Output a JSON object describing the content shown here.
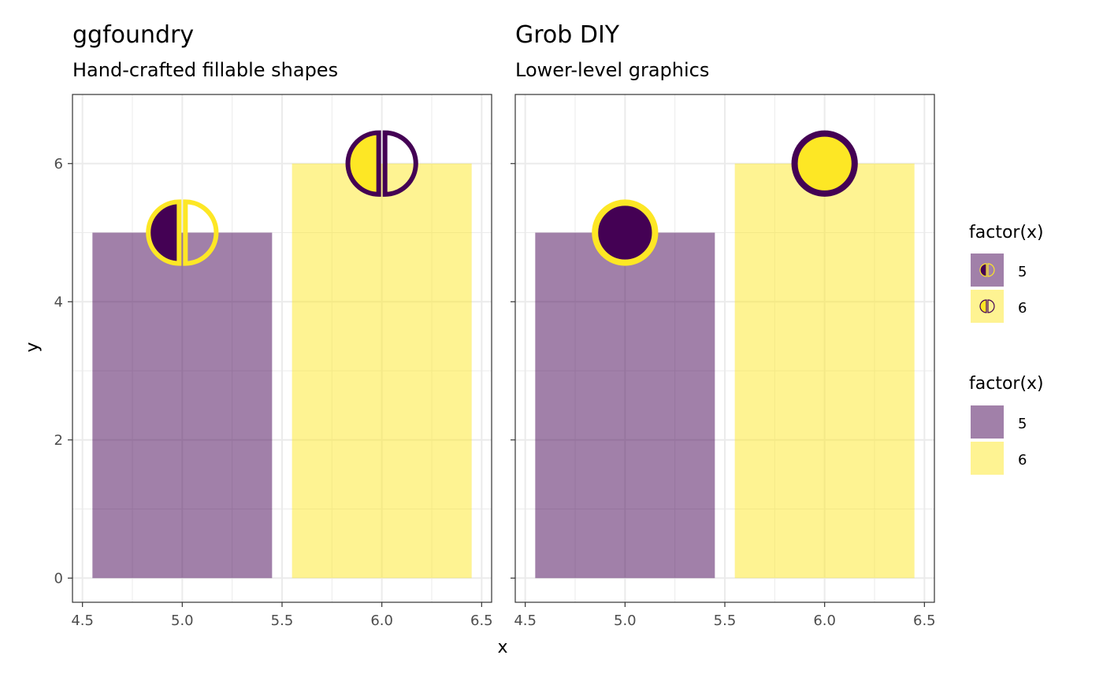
{
  "chart_data": [
    {
      "type": "bar",
      "title": "ggfoundry",
      "subtitle": "Hand-crafted fillable shapes",
      "xlabel": "x",
      "ylabel": "y",
      "xlim": [
        4.45,
        6.55
      ],
      "ylim": [
        -0.35,
        7.0
      ],
      "x_ticks": [
        4.5,
        5.0,
        5.5,
        6.0,
        6.5
      ],
      "x_tick_labels": [
        "4.5",
        "5.0",
        "5.5",
        "6.0",
        "6.5"
      ],
      "y_ticks": [
        0,
        2,
        4,
        6
      ],
      "y_tick_labels": [
        "0",
        "2",
        "4",
        "6"
      ],
      "bar_width": 0.9,
      "bars": [
        {
          "x": 5,
          "y": 5,
          "fill": "#440154",
          "alpha": 0.5
        },
        {
          "x": 6,
          "y": 6,
          "fill": "#FDE725",
          "alpha": 0.5
        }
      ],
      "points": [
        {
          "x": 5,
          "y": 5,
          "shape": "split-circle",
          "fill": "#440154",
          "outline": "#FDE725"
        },
        {
          "x": 6,
          "y": 6,
          "shape": "split-circle",
          "fill": "#FDE725",
          "outline": "#440154"
        }
      ],
      "grid": true
    },
    {
      "type": "bar",
      "title": "Grob DIY",
      "subtitle": "Lower-level graphics",
      "xlim": [
        4.45,
        6.55
      ],
      "ylim": [
        -0.35,
        7.0
      ],
      "x_ticks": [
        4.5,
        5.0,
        5.5,
        6.0,
        6.5
      ],
      "x_tick_labels": [
        "4.5",
        "5.0",
        "5.5",
        "6.0",
        "6.5"
      ],
      "bar_width": 0.9,
      "bars": [
        {
          "x": 5,
          "y": 5,
          "fill": "#440154",
          "alpha": 0.5
        },
        {
          "x": 6,
          "y": 6,
          "fill": "#FDE725",
          "alpha": 0.5
        }
      ],
      "points": [
        {
          "x": 5,
          "y": 5,
          "shape": "circle",
          "fill": "#440154",
          "outline": "#FDE725"
        },
        {
          "x": 6,
          "y": 6,
          "shape": "circle",
          "fill": "#FDE725",
          "outline": "#440154"
        }
      ],
      "grid": true
    }
  ],
  "legends": [
    {
      "title": "factor(x)",
      "key_type": "split-circle",
      "items": [
        {
          "label": "5",
          "fill": "#440154",
          "outline": "#FDE725"
        },
        {
          "label": "6",
          "fill": "#FDE725",
          "outline": "#440154"
        }
      ]
    },
    {
      "title": "factor(x)",
      "key_type": "fill",
      "items": [
        {
          "label": "5",
          "fill": "#440154"
        },
        {
          "label": "6",
          "fill": "#FDE725"
        }
      ]
    }
  ],
  "legend_position": "right",
  "colors": {
    "purple": "#440154",
    "yellow": "#FDE725"
  }
}
